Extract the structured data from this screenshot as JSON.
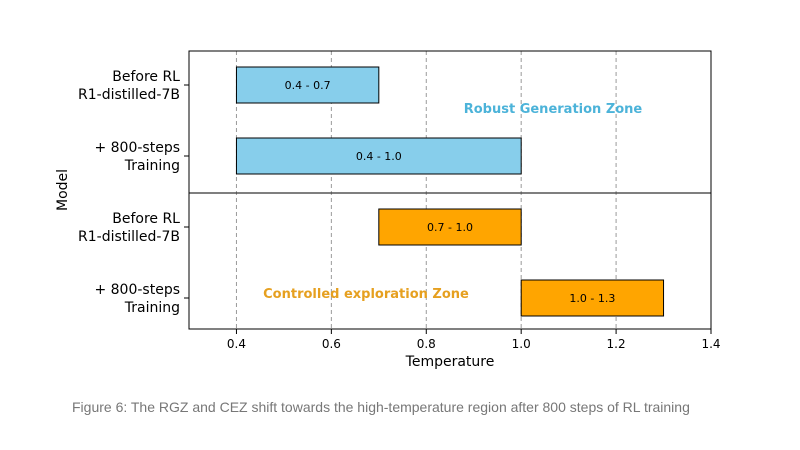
{
  "chart_data": {
    "type": "bar",
    "orientation": "horizontal",
    "range_bars": true,
    "xlabel": "Temperature",
    "ylabel": "Model",
    "xlim": [
      0.3,
      1.4
    ],
    "xticks": [
      0.4,
      0.6,
      0.8,
      1.0,
      1.2,
      1.4
    ],
    "xtick_labels": [
      "0.4",
      "0.6",
      "0.8",
      "1.0",
      "1.2",
      "1.4"
    ],
    "grid": "x-dashed",
    "categories": [
      [
        "Before RL",
        "R1-distilled-7B"
      ],
      [
        "+ 800-steps",
        "Training"
      ],
      [
        "Before RL",
        "R1-distilled-7B"
      ],
      [
        "+ 800-steps",
        "Training"
      ]
    ],
    "bars": [
      {
        "start": 0.4,
        "end": 0.7,
        "label": "0.4 - 0.7",
        "color": "#87ceeb",
        "row": 0
      },
      {
        "start": 0.4,
        "end": 1.0,
        "label": "0.4 - 1.0",
        "color": "#87ceeb",
        "row": 1
      },
      {
        "start": 0.7,
        "end": 1.0,
        "label": "0.7 - 1.0",
        "color": "#ffa500",
        "row": 2
      },
      {
        "start": 1.0,
        "end": 1.3,
        "label": "1.0 - 1.3",
        "color": "#ffa500",
        "row": 3
      }
    ],
    "zones": [
      {
        "label": "Robust Generation Zone",
        "color": "#4cb3d9"
      },
      {
        "label": "Controlled exploration Zone",
        "color": "#e6a020"
      }
    ],
    "divider_after_row": 1
  },
  "caption": "Figure 6: The RGZ and CEZ shift towards the high-temperature region after 800 steps of RL training"
}
